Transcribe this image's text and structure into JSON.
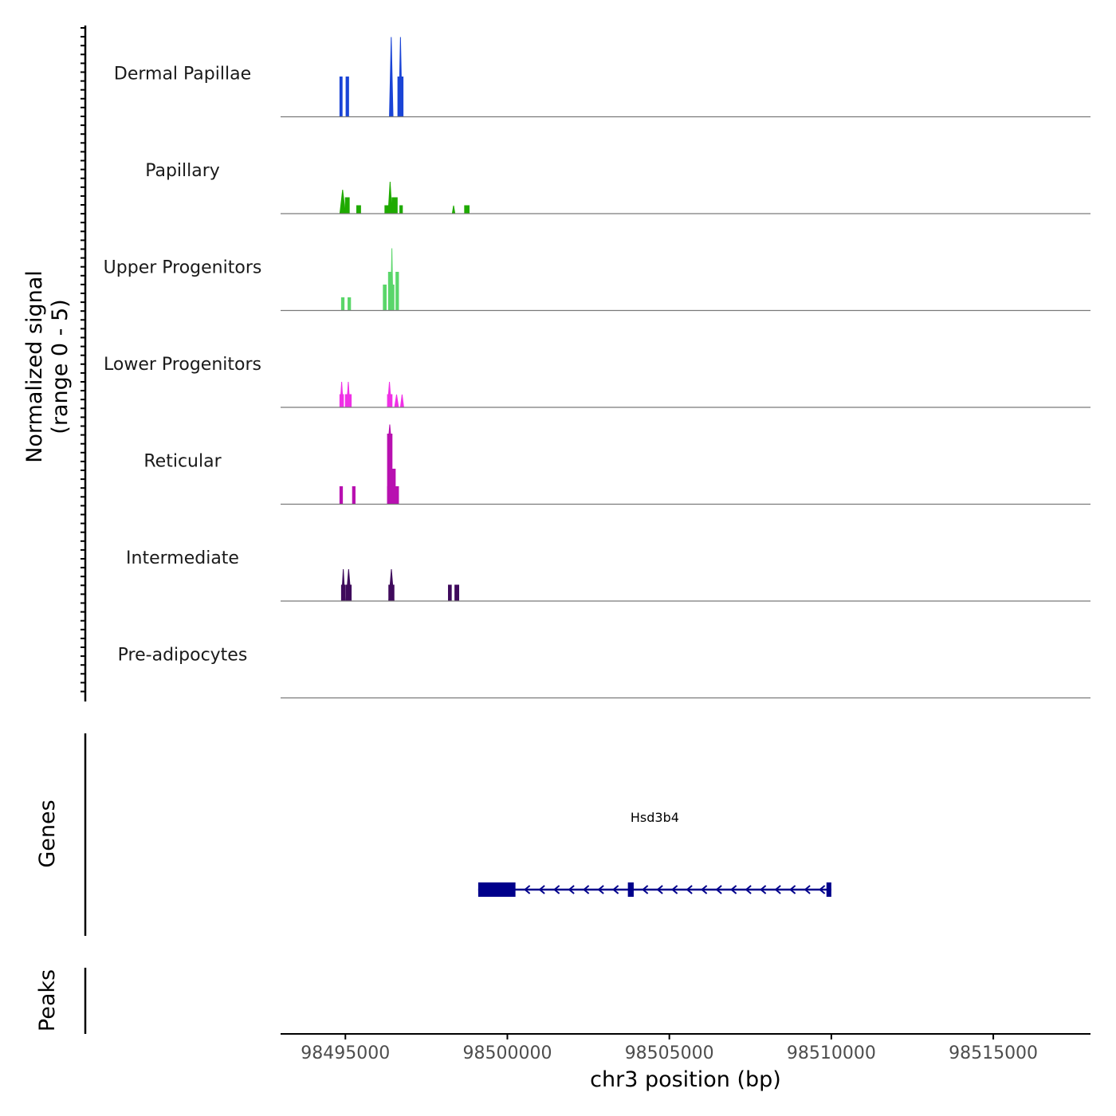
{
  "chart_data": {
    "type": "area",
    "title": "",
    "ylabel_line1": "Normalized signal",
    "ylabel_line2": "(range 0 - 5)",
    "xlabel": "chr3 position (bp)",
    "xlim": [
      98493000,
      98518000
    ],
    "ylim": [
      0,
      5
    ],
    "x_ticks": [
      98495000,
      98500000,
      98505000,
      98510000,
      98515000
    ],
    "x_tick_labels": [
      "98495000",
      "98500000",
      "98505000",
      "98510000",
      "98515000"
    ],
    "genes_label": "Genes",
    "peaks_label": "Peaks",
    "tracks": [
      {
        "name": "Dermal Papillae",
        "color": "#1a44d6",
        "peaks": [
          {
            "start": 98494830,
            "end": 98494900,
            "value": 2.5
          },
          {
            "start": 98495020,
            "end": 98495100,
            "value": 2.5
          },
          {
            "start": 98496360,
            "end": 98496470,
            "value": 5.0,
            "shape": "spike"
          },
          {
            "start": 98496620,
            "end": 98496780,
            "value": 2.5,
            "spike": 5.0
          }
        ]
      },
      {
        "name": "Papillary",
        "color": "#1faa00",
        "peaks": [
          {
            "start": 98494830,
            "end": 98495000,
            "value": 1.5,
            "shape": "spike"
          },
          {
            "start": 98495000,
            "end": 98495120,
            "value": 1.0
          },
          {
            "start": 98495350,
            "end": 98495470,
            "value": 0.5
          },
          {
            "start": 98496220,
            "end": 98496320,
            "value": 0.5
          },
          {
            "start": 98496320,
            "end": 98496440,
            "value": 2.0,
            "shape": "spike"
          },
          {
            "start": 98496440,
            "end": 98496600,
            "value": 1.0
          },
          {
            "start": 98496680,
            "end": 98496760,
            "value": 0.5
          },
          {
            "start": 98498300,
            "end": 98498380,
            "value": 0.5,
            "shape": "spike"
          },
          {
            "start": 98498680,
            "end": 98498820,
            "value": 0.5
          }
        ]
      },
      {
        "name": "Upper Progenitors",
        "color": "#5ad66a",
        "peaks": [
          {
            "start": 98494880,
            "end": 98494960,
            "value": 0.8
          },
          {
            "start": 98495080,
            "end": 98495160,
            "value": 0.8
          },
          {
            "start": 98496170,
            "end": 98496260,
            "value": 1.6
          },
          {
            "start": 98496330,
            "end": 98496400,
            "value": 2.4
          },
          {
            "start": 98496400,
            "end": 98496470,
            "value": 3.9,
            "shape": "spike"
          },
          {
            "start": 98496400,
            "end": 98496500,
            "value": 1.6
          },
          {
            "start": 98496560,
            "end": 98496640,
            "value": 2.4
          }
        ]
      },
      {
        "name": "Lower Progenitors",
        "color": "#f030e6",
        "peaks": [
          {
            "start": 98494830,
            "end": 98494940,
            "value": 0.8,
            "spike": 1.6
          },
          {
            "start": 98495000,
            "end": 98495180,
            "value": 0.8,
            "spike": 1.6
          },
          {
            "start": 98496300,
            "end": 98496420,
            "value": 1.6,
            "shape": "spike"
          },
          {
            "start": 98496300,
            "end": 98496440,
            "value": 0.8
          },
          {
            "start": 98496520,
            "end": 98496640,
            "value": 0.8,
            "shape": "spike"
          },
          {
            "start": 98496700,
            "end": 98496800,
            "value": 0.8,
            "shape": "spike"
          }
        ]
      },
      {
        "name": "Reticular",
        "color": "#b810b0",
        "peaks": [
          {
            "start": 98494830,
            "end": 98494910,
            "value": 1.1
          },
          {
            "start": 98495220,
            "end": 98495300,
            "value": 1.1
          },
          {
            "start": 98496300,
            "end": 98496440,
            "value": 4.4,
            "spike": 5.0
          },
          {
            "start": 98496440,
            "end": 98496540,
            "value": 2.2
          },
          {
            "start": 98496300,
            "end": 98496640,
            "value": 1.1
          }
        ]
      },
      {
        "name": "Intermediate",
        "color": "#3f0a5c",
        "peaks": [
          {
            "start": 98494880,
            "end": 98494990,
            "value": 2.0,
            "shape": "spike"
          },
          {
            "start": 98494880,
            "end": 98494990,
            "value": 1.0
          },
          {
            "start": 98495020,
            "end": 98495180,
            "value": 2.0,
            "shape": "spike"
          },
          {
            "start": 98495020,
            "end": 98495180,
            "value": 1.0
          },
          {
            "start": 98496340,
            "end": 98496500,
            "value": 2.0,
            "shape": "spike"
          },
          {
            "start": 98496340,
            "end": 98496500,
            "value": 1.0
          },
          {
            "start": 98498180,
            "end": 98498270,
            "value": 1.0
          },
          {
            "start": 98498380,
            "end": 98498500,
            "value": 1.0
          }
        ]
      },
      {
        "name": "Pre-adipocytes",
        "color": "#2a0040",
        "peaks": []
      }
    ],
    "gene": {
      "name": "Hsd3b4",
      "color": "#00008b",
      "strand": "-",
      "start": 98499100,
      "end": 98510000,
      "exons": [
        {
          "start": 98499100,
          "end": 98500250
        },
        {
          "start": 98503720,
          "end": 98503900
        },
        {
          "start": 98509850,
          "end": 98510000
        }
      ]
    },
    "peak_regions": []
  }
}
